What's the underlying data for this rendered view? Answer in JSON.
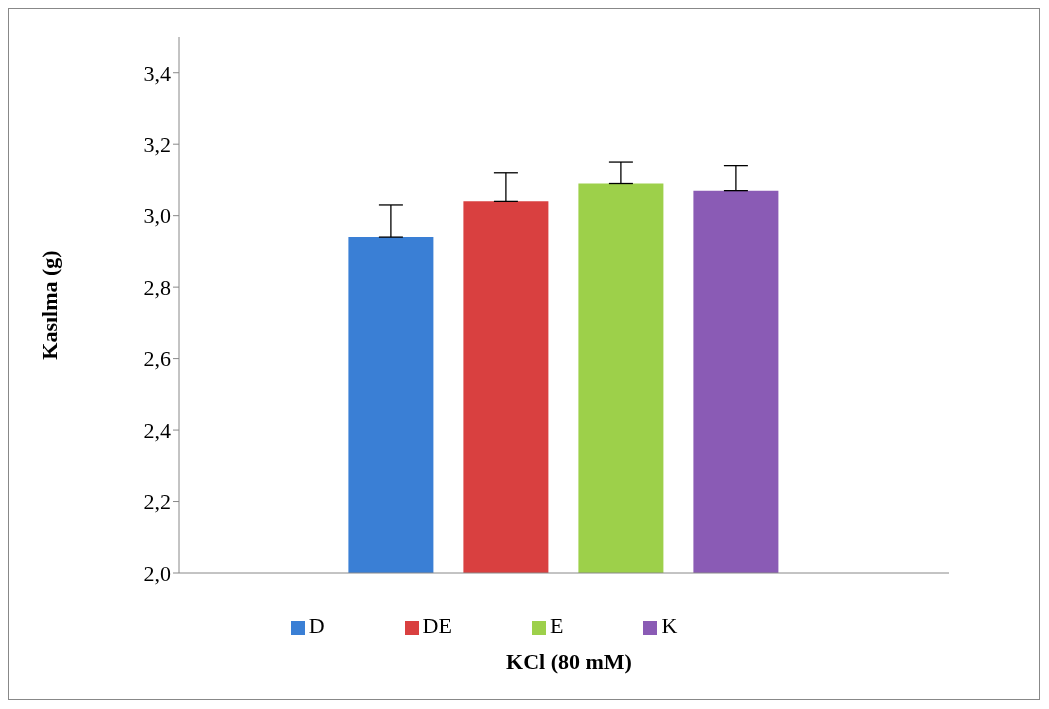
{
  "chart_data": {
    "type": "bar",
    "xlabel": "KCl (80 mM)",
    "ylabel": "Kasılma (g)",
    "categories": [
      null
    ],
    "series": [
      {
        "name": "D",
        "color": "#3a7fd5",
        "values": [
          2.94
        ],
        "errors": [
          [
            2.94,
            3.03
          ]
        ]
      },
      {
        "name": "DE",
        "color": "#d94040",
        "values": [
          3.04
        ],
        "errors": [
          [
            3.04,
            3.12
          ]
        ]
      },
      {
        "name": "E",
        "color": "#9dd04a",
        "values": [
          3.09
        ],
        "errors": [
          [
            3.09,
            3.15
          ]
        ]
      },
      {
        "name": "K",
        "color": "#8a5bb5",
        "values": [
          3.07
        ],
        "errors": [
          [
            3.07,
            3.14
          ]
        ]
      }
    ],
    "ylim": [
      2,
      3.5
    ],
    "yticks": [
      {
        "value": 2,
        "label": "2,0"
      },
      {
        "value": 2.2,
        "label": "2,2"
      },
      {
        "value": 2.4,
        "label": "2,4"
      },
      {
        "value": 2.6,
        "label": "2,6"
      },
      {
        "value": 2.8,
        "label": "2,8"
      },
      {
        "value": 3,
        "label": "3,0"
      },
      {
        "value": 3.2,
        "label": "3,2"
      },
      {
        "value": 3.4,
        "label": "3,4"
      }
    ],
    "grid": false,
    "legend": "bottom"
  }
}
